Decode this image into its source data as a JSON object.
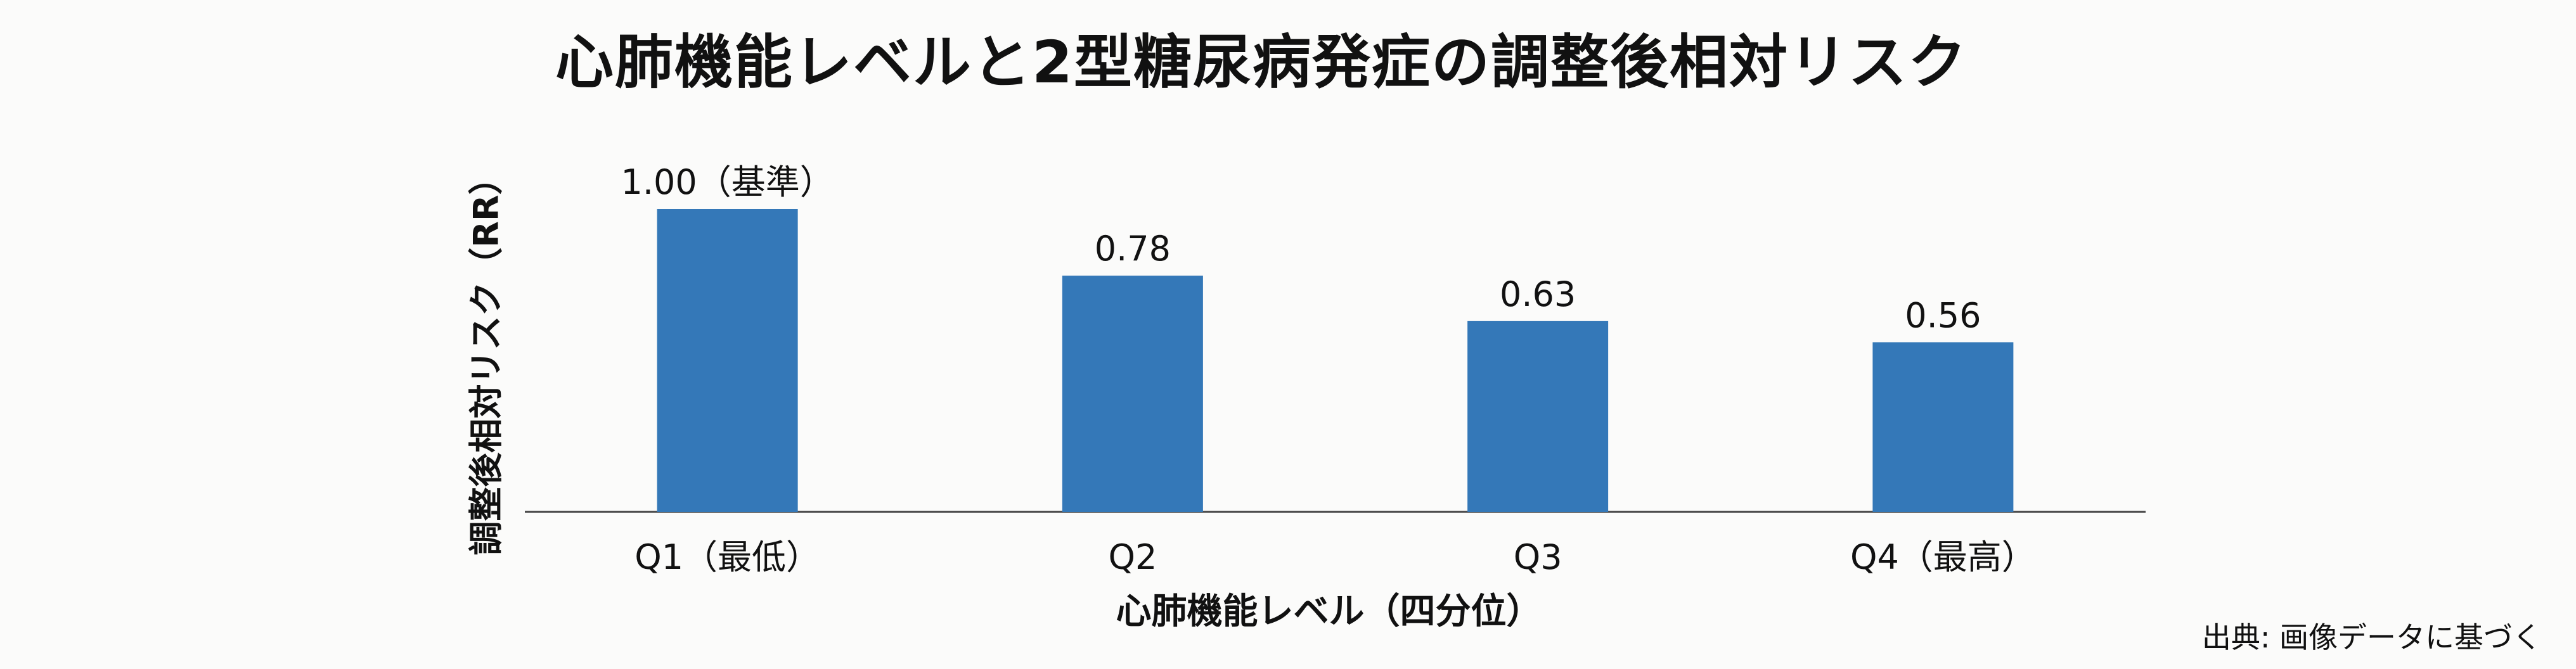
{
  "chart_data": {
    "type": "bar",
    "title": "心肺機能レベルと2型糖尿病発症の調整後相対リスク",
    "xlabel": "心肺機能レベル（四分位）",
    "ylabel": "調整後相対リスク（RR）",
    "categories": [
      "Q1（最低）",
      "Q2",
      "Q3",
      "Q4（最高）"
    ],
    "values": [
      1.0,
      0.78,
      0.63,
      0.56
    ],
    "value_labels": [
      "1.00（基準）",
      "0.78",
      "0.63",
      "0.56"
    ],
    "ylim": [
      0,
      1.0
    ],
    "grid": false,
    "legend": "none",
    "bar_color": "#3478b8"
  },
  "source_note": "出典: 画像データに基づく"
}
